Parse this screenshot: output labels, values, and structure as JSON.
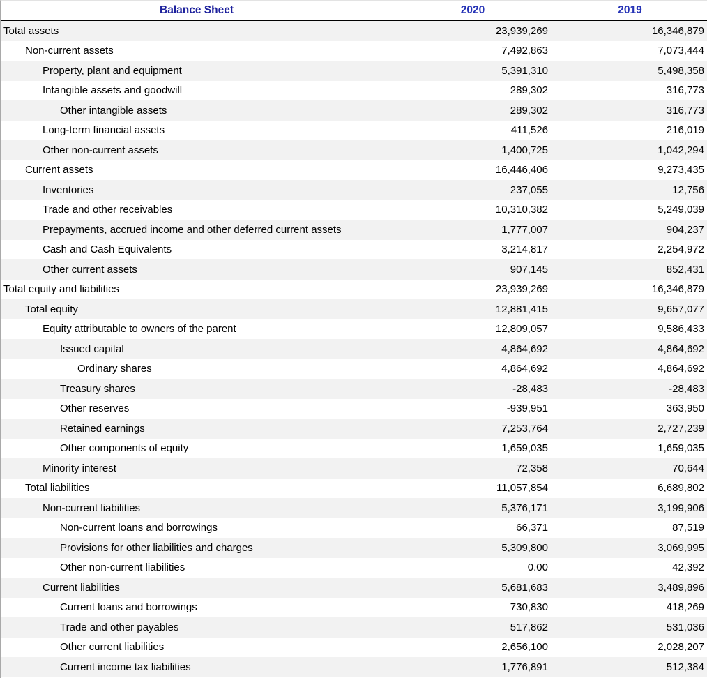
{
  "table": {
    "header": {
      "title": "Balance Sheet",
      "col_2020": "2020",
      "col_2019": "2019"
    },
    "colors": {
      "title_blue": "#1c209c",
      "year_blue": "#2633b6",
      "alt_row_gray": "#f2f2f2",
      "header_rule": "#000000"
    },
    "rows": [
      {
        "label": "Total assets",
        "level": 0,
        "v2020": "23,939,269",
        "v2019": "16,346,879"
      },
      {
        "label": "Non-current assets",
        "level": 1,
        "v2020": "7,492,863",
        "v2019": "7,073,444"
      },
      {
        "label": "Property, plant and equipment",
        "level": 2,
        "v2020": "5,391,310",
        "v2019": "5,498,358"
      },
      {
        "label": "Intangible assets and goodwill",
        "level": 2,
        "v2020": "289,302",
        "v2019": "316,773"
      },
      {
        "label": "Other intangible assets",
        "level": 3,
        "v2020": "289,302",
        "v2019": "316,773"
      },
      {
        "label": "Long-term financial assets",
        "level": 2,
        "v2020": "411,526",
        "v2019": "216,019"
      },
      {
        "label": "Other non-current assets",
        "level": 2,
        "v2020": "1,400,725",
        "v2019": "1,042,294"
      },
      {
        "label": "Current assets",
        "level": 1,
        "v2020": "16,446,406",
        "v2019": "9,273,435"
      },
      {
        "label": "Inventories",
        "level": 2,
        "v2020": "237,055",
        "v2019": "12,756"
      },
      {
        "label": "Trade and other receivables",
        "level": 2,
        "v2020": "10,310,382",
        "v2019": "5,249,039"
      },
      {
        "label": "Prepayments, accrued income and other deferred current assets",
        "level": 2,
        "v2020": "1,777,007",
        "v2019": "904,237"
      },
      {
        "label": "Cash and Cash Equivalents",
        "level": 2,
        "v2020": "3,214,817",
        "v2019": "2,254,972"
      },
      {
        "label": "Other current assets",
        "level": 2,
        "v2020": "907,145",
        "v2019": "852,431"
      },
      {
        "label": "Total equity and liabilities",
        "level": 0,
        "v2020": "23,939,269",
        "v2019": "16,346,879"
      },
      {
        "label": "Total equity",
        "level": 1,
        "v2020": "12,881,415",
        "v2019": "9,657,077"
      },
      {
        "label": "Equity attributable to owners of the parent",
        "level": 2,
        "v2020": "12,809,057",
        "v2019": "9,586,433"
      },
      {
        "label": "Issued capital",
        "level": 3,
        "v2020": "4,864,692",
        "v2019": "4,864,692"
      },
      {
        "label": "Ordinary shares",
        "level": 4,
        "v2020": "4,864,692",
        "v2019": "4,864,692"
      },
      {
        "label": "Treasury shares",
        "level": 3,
        "v2020": "-28,483",
        "v2019": "-28,483"
      },
      {
        "label": "Other reserves",
        "level": 3,
        "v2020": "-939,951",
        "v2019": "363,950"
      },
      {
        "label": "Retained earnings",
        "level": 3,
        "v2020": "7,253,764",
        "v2019": "2,727,239"
      },
      {
        "label": "Other components of equity",
        "level": 3,
        "v2020": "1,659,035",
        "v2019": "1,659,035"
      },
      {
        "label": "Minority interest",
        "level": 2,
        "v2020": "72,358",
        "v2019": "70,644"
      },
      {
        "label": "Total liabilities",
        "level": 1,
        "v2020": "11,057,854",
        "v2019": "6,689,802"
      },
      {
        "label": "Non-current liabilities",
        "level": 2,
        "v2020": "5,376,171",
        "v2019": "3,199,906"
      },
      {
        "label": "Non-current loans and borrowings",
        "level": 3,
        "v2020": "66,371",
        "v2019": "87,519"
      },
      {
        "label": "Provisions for other liabilities and charges",
        "level": 3,
        "v2020": "5,309,800",
        "v2019": "3,069,995"
      },
      {
        "label": "Other non-current liabilities",
        "level": 3,
        "v2020": "0.00",
        "v2019": "42,392"
      },
      {
        "label": "Current liabilities",
        "level": 2,
        "v2020": "5,681,683",
        "v2019": "3,489,896"
      },
      {
        "label": "Current loans and borrowings",
        "level": 3,
        "v2020": "730,830",
        "v2019": "418,269"
      },
      {
        "label": "Trade and other payables",
        "level": 3,
        "v2020": "517,862",
        "v2019": "531,036"
      },
      {
        "label": "Other current liabilities",
        "level": 3,
        "v2020": "2,656,100",
        "v2019": "2,028,207"
      },
      {
        "label": "Current income tax liabilities",
        "level": 3,
        "v2020": "1,776,891",
        "v2019": "512,384"
      }
    ]
  }
}
